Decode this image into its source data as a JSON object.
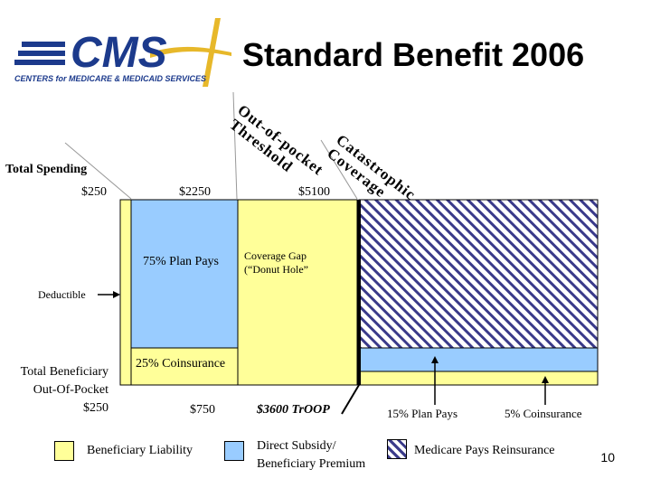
{
  "header": {
    "title": "Standard Benefit 2006",
    "logo_text": "CMS",
    "logo_subtitle": "CENTERS for MEDICARE & MEDICAID SERVICES"
  },
  "diagram": {
    "total_spending_label": "Total Spending",
    "spending_points": [
      "$250",
      "$2250",
      "$5100"
    ],
    "oop_threshold_line1": "Out-of-pocket",
    "oop_threshold_line2": "Threshold",
    "catastrophic_line1": "Catastrophic",
    "catastrophic_line2": "Coverage",
    "plan_pays_75": "75% Plan Pays",
    "coverage_gap_line1": "Coverage Gap",
    "coverage_gap_line2": "(“Donut Hole”",
    "deductible_label": "Deductible",
    "coinsurance_25": "25% Coinsurance",
    "beneficiary_oop_line1": "Total Beneficiary",
    "beneficiary_oop_line2": "Out-Of-Pocket",
    "oop_points": [
      "$250",
      "$750",
      "$3600 TrOOP"
    ],
    "plan_pays_15": "15% Plan Pays",
    "coinsurance_5": "5% Coinsurance"
  },
  "legend": [
    {
      "label": "Beneficiary Liability",
      "color": "#ffff99"
    },
    {
      "label_line1": "Direct Subsidy/",
      "label_line2": "Beneficiary Premium",
      "color": "#99ccff"
    },
    {
      "label": "Medicare Pays Reinsurance",
      "color": "hatch"
    }
  ],
  "page_number": "10"
}
